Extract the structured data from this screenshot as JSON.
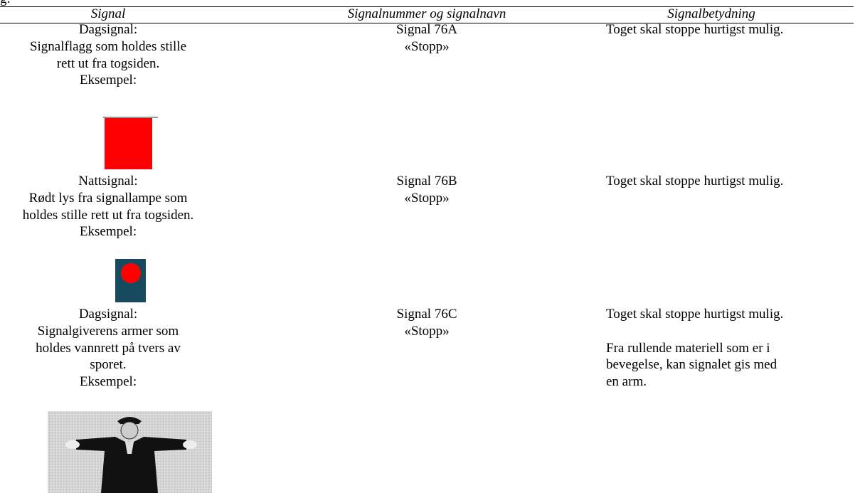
{
  "header": {
    "fragment": "g:",
    "columns": [
      "Signal",
      "Signalnummer og signalnavn",
      "Signalbetydning"
    ]
  },
  "table": {
    "rows": [
      {
        "signal": [
          "Dagsignal:",
          "Signalflagg som holdes stille",
          "rett ut fra togsiden.",
          "Eksempel:"
        ],
        "number": [
          "Signal 76A",
          "«Stopp»"
        ],
        "meaning": [
          [
            "Toget skal stoppe hurtigst mulig."
          ]
        ]
      },
      {
        "signal": [
          "Nattsignal:",
          "Rødt lys fra signallampe som",
          "holdes stille rett ut fra togsiden.",
          "Eksempel:"
        ],
        "number": [
          "Signal 76B",
          "«Stopp»"
        ],
        "meaning": [
          [
            "Toget skal stoppe hurtigst mulig."
          ]
        ]
      },
      {
        "signal": [
          "Dagsignal:",
          "Signalgiverens armer som",
          "holdes vannrett på tvers av",
          "sporet.",
          "Eksempel:"
        ],
        "number": [
          "Signal 76C",
          "«Stopp»"
        ],
        "meaning": [
          [
            "Toget skal stoppe hurtigst mulig."
          ],
          [
            "Fra rullende materiell som er i",
            "bevegelse, kan signalet gis med",
            "en arm."
          ]
        ]
      }
    ]
  }
}
